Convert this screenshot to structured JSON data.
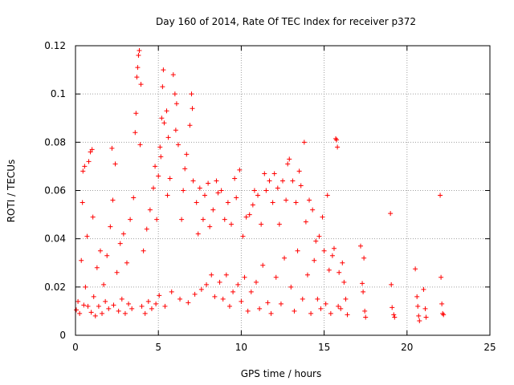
{
  "chart_data": {
    "type": "scatter",
    "title": "Day 160 of 2014, Rate Of TEC Index for receiver p372",
    "xlabel": "GPS time / hours",
    "ylabel": "ROTI / TECUs",
    "xlim": [
      0,
      25
    ],
    "ylim": [
      0,
      0.12
    ],
    "grid": true,
    "marker": "+",
    "series_color": "#ff0000",
    "x_ticks": [
      {
        "value": 0,
        "label": "0"
      },
      {
        "value": 5,
        "label": "5"
      },
      {
        "value": 10,
        "label": "10"
      },
      {
        "value": 15,
        "label": "15"
      },
      {
        "value": 20,
        "label": "20"
      },
      {
        "value": 25,
        "label": "25"
      }
    ],
    "y_ticks": [
      {
        "value": 0,
        "label": "0"
      },
      {
        "value": 0.02,
        "label": "0.02"
      },
      {
        "value": 0.04,
        "label": "0.04"
      },
      {
        "value": 0.06,
        "label": "0.06"
      },
      {
        "value": 0.08,
        "label": "0.08"
      },
      {
        "value": 0.1,
        "label": "0.1"
      },
      {
        "value": 0.12,
        "label": "0.12"
      }
    ],
    "series": [
      {
        "name": "ROTI",
        "points": [
          [
            0.05,
            0.0105
          ],
          [
            0.15,
            0.014
          ],
          [
            0.25,
            0.009
          ],
          [
            0.35,
            0.031
          ],
          [
            0.42,
            0.055
          ],
          [
            0.45,
            0.068
          ],
          [
            0.5,
            0.0125
          ],
          [
            0.55,
            0.07
          ],
          [
            0.6,
            0.02
          ],
          [
            0.7,
            0.041
          ],
          [
            0.75,
            0.012
          ],
          [
            0.8,
            0.072
          ],
          [
            0.9,
            0.076
          ],
          [
            0.95,
            0.0095
          ],
          [
            1.0,
            0.077
          ],
          [
            1.05,
            0.049
          ],
          [
            1.1,
            0.016
          ],
          [
            1.2,
            0.008
          ],
          [
            1.3,
            0.028
          ],
          [
            1.4,
            0.012
          ],
          [
            1.5,
            0.035
          ],
          [
            1.6,
            0.009
          ],
          [
            1.7,
            0.021
          ],
          [
            1.8,
            0.014
          ],
          [
            1.9,
            0.033
          ],
          [
            2.0,
            0.011
          ],
          [
            2.1,
            0.045
          ],
          [
            2.2,
            0.0775
          ],
          [
            2.25,
            0.056
          ],
          [
            2.3,
            0.0125
          ],
          [
            2.4,
            0.071
          ],
          [
            2.5,
            0.026
          ],
          [
            2.6,
            0.01
          ],
          [
            2.7,
            0.038
          ],
          [
            2.8,
            0.015
          ],
          [
            2.9,
            0.042
          ],
          [
            3.0,
            0.009
          ],
          [
            3.1,
            0.03
          ],
          [
            3.2,
            0.013
          ],
          [
            3.3,
            0.048
          ],
          [
            3.4,
            0.011
          ],
          [
            3.5,
            0.057
          ],
          [
            3.6,
            0.084
          ],
          [
            3.65,
            0.092
          ],
          [
            3.7,
            0.107
          ],
          [
            3.75,
            0.111
          ],
          [
            3.8,
            0.116
          ],
          [
            3.85,
            0.118
          ],
          [
            3.9,
            0.079
          ],
          [
            3.95,
            0.104
          ],
          [
            4.0,
            0.012
          ],
          [
            4.1,
            0.035
          ],
          [
            4.2,
            0.009
          ],
          [
            4.3,
            0.044
          ],
          [
            4.4,
            0.014
          ],
          [
            4.5,
            0.052
          ],
          [
            4.6,
            0.011
          ],
          [
            4.7,
            0.061
          ],
          [
            4.8,
            0.07
          ],
          [
            4.85,
            0.013
          ],
          [
            4.9,
            0.048
          ],
          [
            5.0,
            0.066
          ],
          [
            5.05,
            0.0165
          ],
          [
            5.1,
            0.078
          ],
          [
            5.15,
            0.074
          ],
          [
            5.2,
            0.09
          ],
          [
            5.25,
            0.103
          ],
          [
            5.3,
            0.11
          ],
          [
            5.35,
            0.088
          ],
          [
            5.4,
            0.012
          ],
          [
            5.5,
            0.093
          ],
          [
            5.55,
            0.058
          ],
          [
            5.6,
            0.082
          ],
          [
            5.7,
            0.065
          ],
          [
            5.8,
            0.018
          ],
          [
            5.9,
            0.108
          ],
          [
            6.0,
            0.1
          ],
          [
            6.05,
            0.085
          ],
          [
            6.1,
            0.096
          ],
          [
            6.2,
            0.079
          ],
          [
            6.3,
            0.015
          ],
          [
            6.4,
            0.048
          ],
          [
            6.5,
            0.06
          ],
          [
            6.6,
            0.069
          ],
          [
            6.7,
            0.075
          ],
          [
            6.8,
            0.0135
          ],
          [
            6.9,
            0.087
          ],
          [
            7.0,
            0.1
          ],
          [
            7.05,
            0.094
          ],
          [
            7.1,
            0.064
          ],
          [
            7.2,
            0.017
          ],
          [
            7.3,
            0.055
          ],
          [
            7.4,
            0.042
          ],
          [
            7.5,
            0.061
          ],
          [
            7.6,
            0.019
          ],
          [
            7.7,
            0.048
          ],
          [
            7.8,
            0.058
          ],
          [
            7.9,
            0.021
          ],
          [
            8.0,
            0.063
          ],
          [
            8.1,
            0.045
          ],
          [
            8.2,
            0.025
          ],
          [
            8.3,
            0.052
          ],
          [
            8.4,
            0.016
          ],
          [
            8.5,
            0.064
          ],
          [
            8.6,
            0.059
          ],
          [
            8.7,
            0.022
          ],
          [
            8.8,
            0.06
          ],
          [
            8.9,
            0.015
          ],
          [
            9.0,
            0.048
          ],
          [
            9.1,
            0.025
          ],
          [
            9.2,
            0.055
          ],
          [
            9.3,
            0.012
          ],
          [
            9.4,
            0.046
          ],
          [
            9.5,
            0.018
          ],
          [
            9.6,
            0.065
          ],
          [
            9.7,
            0.057
          ],
          [
            9.8,
            0.021
          ],
          [
            9.9,
            0.0685
          ],
          [
            10.0,
            0.014
          ],
          [
            10.1,
            0.041
          ],
          [
            10.2,
            0.024
          ],
          [
            10.3,
            0.049
          ],
          [
            10.4,
            0.01
          ],
          [
            10.5,
            0.05
          ],
          [
            10.6,
            0.018
          ],
          [
            10.7,
            0.054
          ],
          [
            10.8,
            0.06
          ],
          [
            10.9,
            0.022
          ],
          [
            11.0,
            0.058
          ],
          [
            11.1,
            0.011
          ],
          [
            11.2,
            0.046
          ],
          [
            11.3,
            0.029
          ],
          [
            11.4,
            0.067
          ],
          [
            11.5,
            0.06
          ],
          [
            11.6,
            0.0135
          ],
          [
            11.7,
            0.064
          ],
          [
            11.8,
            0.009
          ],
          [
            11.9,
            0.055
          ],
          [
            12.0,
            0.067
          ],
          [
            12.1,
            0.024
          ],
          [
            12.2,
            0.061
          ],
          [
            12.3,
            0.046
          ],
          [
            12.4,
            0.013
          ],
          [
            12.5,
            0.064
          ],
          [
            12.6,
            0.032
          ],
          [
            12.7,
            0.056
          ],
          [
            12.8,
            0.071
          ],
          [
            12.9,
            0.073
          ],
          [
            13.0,
            0.02
          ],
          [
            13.1,
            0.064
          ],
          [
            13.2,
            0.01
          ],
          [
            13.3,
            0.055
          ],
          [
            13.4,
            0.035
          ],
          [
            13.5,
            0.068
          ],
          [
            13.6,
            0.062
          ],
          [
            13.7,
            0.015
          ],
          [
            13.8,
            0.08
          ],
          [
            13.9,
            0.047
          ],
          [
            14.0,
            0.025
          ],
          [
            14.1,
            0.056
          ],
          [
            14.2,
            0.009
          ],
          [
            14.3,
            0.052
          ],
          [
            14.4,
            0.031
          ],
          [
            14.5,
            0.039
          ],
          [
            14.6,
            0.015
          ],
          [
            14.7,
            0.041
          ],
          [
            14.8,
            0.011
          ],
          [
            14.9,
            0.049
          ],
          [
            15.0,
            0.035
          ],
          [
            15.1,
            0.013
          ],
          [
            15.2,
            0.058
          ],
          [
            15.3,
            0.027
          ],
          [
            15.4,
            0.009
          ],
          [
            15.5,
            0.033
          ],
          [
            15.6,
            0.036
          ],
          [
            15.7,
            0.0815
          ],
          [
            15.75,
            0.081
          ],
          [
            15.8,
            0.078
          ],
          [
            15.85,
            0.012
          ],
          [
            15.9,
            0.026
          ],
          [
            16.0,
            0.011
          ],
          [
            16.1,
            0.03
          ],
          [
            16.2,
            0.022
          ],
          [
            16.3,
            0.015
          ],
          [
            16.4,
            0.0085
          ],
          [
            17.2,
            0.037
          ],
          [
            17.3,
            0.0215
          ],
          [
            17.35,
            0.018
          ],
          [
            17.4,
            0.032
          ],
          [
            17.45,
            0.01
          ],
          [
            17.5,
            0.0075
          ],
          [
            19.0,
            0.0505
          ],
          [
            19.05,
            0.021
          ],
          [
            19.1,
            0.0115
          ],
          [
            19.2,
            0.0085
          ],
          [
            19.25,
            0.0075
          ],
          [
            20.5,
            0.0275
          ],
          [
            20.6,
            0.016
          ],
          [
            20.65,
            0.012
          ],
          [
            20.7,
            0.008
          ],
          [
            20.75,
            0.006
          ],
          [
            21.0,
            0.019
          ],
          [
            21.1,
            0.011
          ],
          [
            21.15,
            0.0075
          ],
          [
            22.0,
            0.058
          ],
          [
            22.05,
            0.024
          ],
          [
            22.1,
            0.013
          ],
          [
            22.15,
            0.009
          ],
          [
            22.2,
            0.0085
          ]
        ]
      }
    ]
  }
}
